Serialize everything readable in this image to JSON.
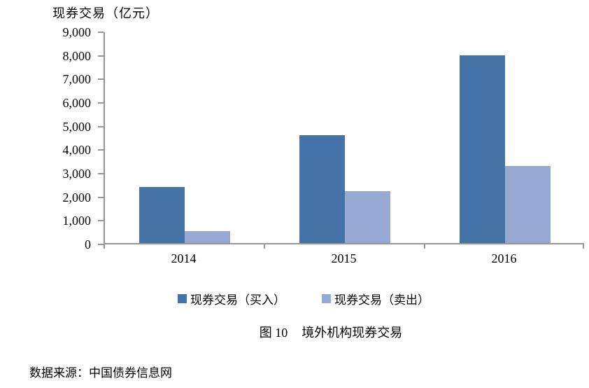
{
  "chart_data": {
    "type": "bar",
    "title": "现券交易（亿元）",
    "categories": [
      "2014",
      "2015",
      "2016"
    ],
    "series": [
      {
        "name": "现券交易（买入）",
        "color": "#4573A7",
        "values": [
          2400,
          4600,
          8000
        ]
      },
      {
        "name": "现券交易（卖出）",
        "color": "#95A9D3",
        "values": [
          500,
          2200,
          3300
        ]
      }
    ],
    "ylim": [
      0,
      9000
    ],
    "ytick_interval": 1000,
    "ytick_labels": [
      "0",
      "1,000",
      "2,000",
      "3,000",
      "4,000",
      "5,000",
      "6,000",
      "7,000",
      "8,000",
      "9,000"
    ],
    "grid": false,
    "legend_position": "bottom",
    "axis_color": "#969696"
  },
  "caption": {
    "label": "图 10",
    "title": "境外机构现券交易"
  },
  "source": {
    "text": "数据来源：中国债券信息网"
  }
}
